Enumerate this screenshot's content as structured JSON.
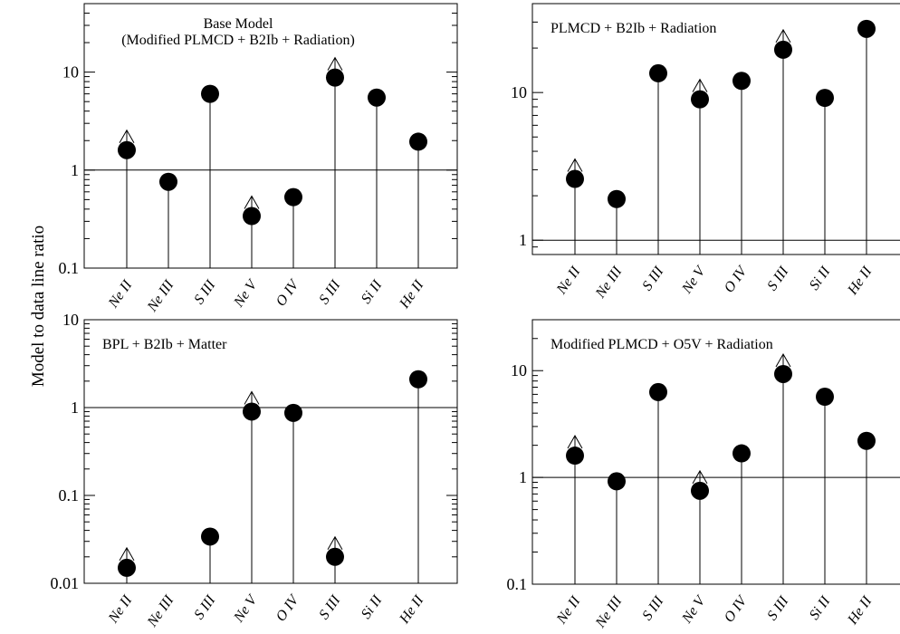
{
  "figure": {
    "ylabel": "Model to data line ratio"
  },
  "chart_data": [
    {
      "type": "scatter",
      "title_lines": [
        "Base Model",
        "(Modified PLMCD + B2Ib + Radiation)"
      ],
      "yscale": "log",
      "ylim": [
        0.1,
        50
      ],
      "yticks": [
        0.1,
        1,
        10
      ],
      "ytick_labels": [
        "0.1",
        "1",
        "10"
      ],
      "reference_line": 1,
      "categories": [
        "Ne II",
        "Ne III",
        "S III",
        "Ne V",
        "O IV",
        "S III",
        "Si II",
        "He II"
      ],
      "values": [
        1.6,
        0.76,
        6.0,
        0.34,
        0.53,
        8.8,
        5.5,
        1.95
      ],
      "lower_limit": [
        true,
        false,
        false,
        true,
        false,
        true,
        false,
        false
      ]
    },
    {
      "type": "scatter",
      "title_lines": [
        "PLMCD + B2Ib + Radiation"
      ],
      "yscale": "log",
      "ylim": [
        0.8,
        40
      ],
      "yticks": [
        1,
        10
      ],
      "ytick_labels": [
        "1",
        "10"
      ],
      "reference_line": 1,
      "categories": [
        "Ne II",
        "Ne III",
        "S III",
        "Ne V",
        "O IV",
        "S III",
        "Si II",
        "He II"
      ],
      "values": [
        2.6,
        1.9,
        13.5,
        9.0,
        12.0,
        19.5,
        9.2,
        27.0
      ],
      "lower_limit": [
        true,
        false,
        false,
        true,
        false,
        true,
        false,
        false
      ]
    },
    {
      "type": "scatter",
      "title_lines": [
        "BPL + B2Ib + Matter"
      ],
      "yscale": "log",
      "ylim": [
        0.01,
        10
      ],
      "yticks": [
        0.01,
        0.1,
        1,
        10
      ],
      "ytick_labels": [
        "0.01",
        "0.1",
        "1",
        "10"
      ],
      "reference_line": 1,
      "categories": [
        "Ne II",
        "Ne III",
        "S III",
        "Ne V",
        "O IV",
        "S III",
        "Si II",
        "He II"
      ],
      "values": [
        0.015,
        null,
        0.034,
        0.9,
        0.87,
        0.02,
        null,
        2.1
      ],
      "lower_limit": [
        true,
        false,
        false,
        true,
        false,
        true,
        false,
        false
      ]
    },
    {
      "type": "scatter",
      "title_lines": [
        "Modified PLMCD + O5V + Radiation"
      ],
      "yscale": "log",
      "ylim": [
        0.1,
        30
      ],
      "yticks": [
        0.1,
        1,
        10
      ],
      "ytick_labels": [
        "0.1",
        "1",
        "10"
      ],
      "reference_line": 1,
      "categories": [
        "Ne II",
        "Ne III",
        "S III",
        "Ne V",
        "O IV",
        "S III",
        "Si II",
        "He II"
      ],
      "values": [
        1.6,
        0.92,
        6.3,
        0.75,
        1.68,
        9.3,
        5.7,
        2.2
      ],
      "lower_limit": [
        true,
        false,
        false,
        true,
        false,
        true,
        false,
        false
      ]
    }
  ]
}
